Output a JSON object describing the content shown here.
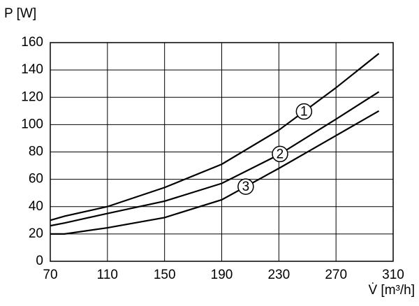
{
  "chart_data": {
    "type": "line",
    "y_label": "P [W]",
    "x_label": "V̇ [m³/h]",
    "x": [
      70,
      80,
      110,
      150,
      190,
      230,
      270,
      300
    ],
    "series": [
      {
        "name": "1",
        "color": "#000000",
        "values": [
          30,
          33,
          40,
          54,
          71,
          96,
          127,
          152
        ]
      },
      {
        "name": "2",
        "color": "#000000",
        "values": [
          26,
          28,
          35,
          44,
          57,
          78,
          104,
          124
        ]
      },
      {
        "name": "3",
        "color": "#000000",
        "values": [
          20,
          20,
          24.5,
          32,
          45,
          68,
          92,
          110
        ]
      }
    ],
    "xlim": [
      70,
      310
    ],
    "xticks": [
      70,
      110,
      150,
      190,
      230,
      270,
      310
    ],
    "ylim": [
      0,
      160
    ],
    "yticks": [
      0,
      20,
      40,
      60,
      80,
      100,
      120,
      140,
      160
    ],
    "grid": true
  }
}
